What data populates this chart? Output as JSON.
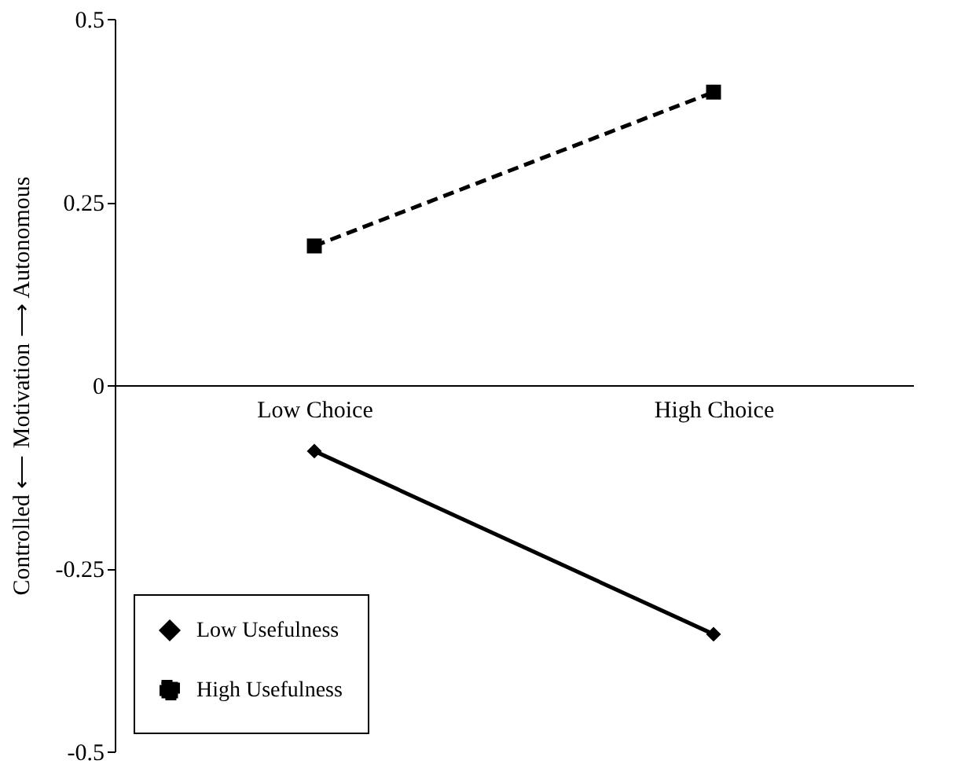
{
  "chart_data": {
    "type": "line",
    "ylabel": "Controlled ⟵ Motivation ⟶ Autonomous",
    "categories": [
      "Low Choice",
      "High Choice"
    ],
    "series": [
      {
        "name": "Low Usefulness",
        "color": "#000000",
        "values": [
          -0.09,
          -0.34
        ],
        "marker": "diamond",
        "line_style": "solid"
      },
      {
        "name": "High Usefulness",
        "color": "#000000",
        "values": [
          0.19,
          0.4
        ],
        "marker": "square",
        "line_style": "dashed"
      }
    ],
    "ylim": [
      -0.5,
      0.5
    ],
    "yticks": [
      -0.5,
      -0.25,
      0,
      0.25,
      0.5
    ],
    "grid": false,
    "legend": "bottom left"
  }
}
